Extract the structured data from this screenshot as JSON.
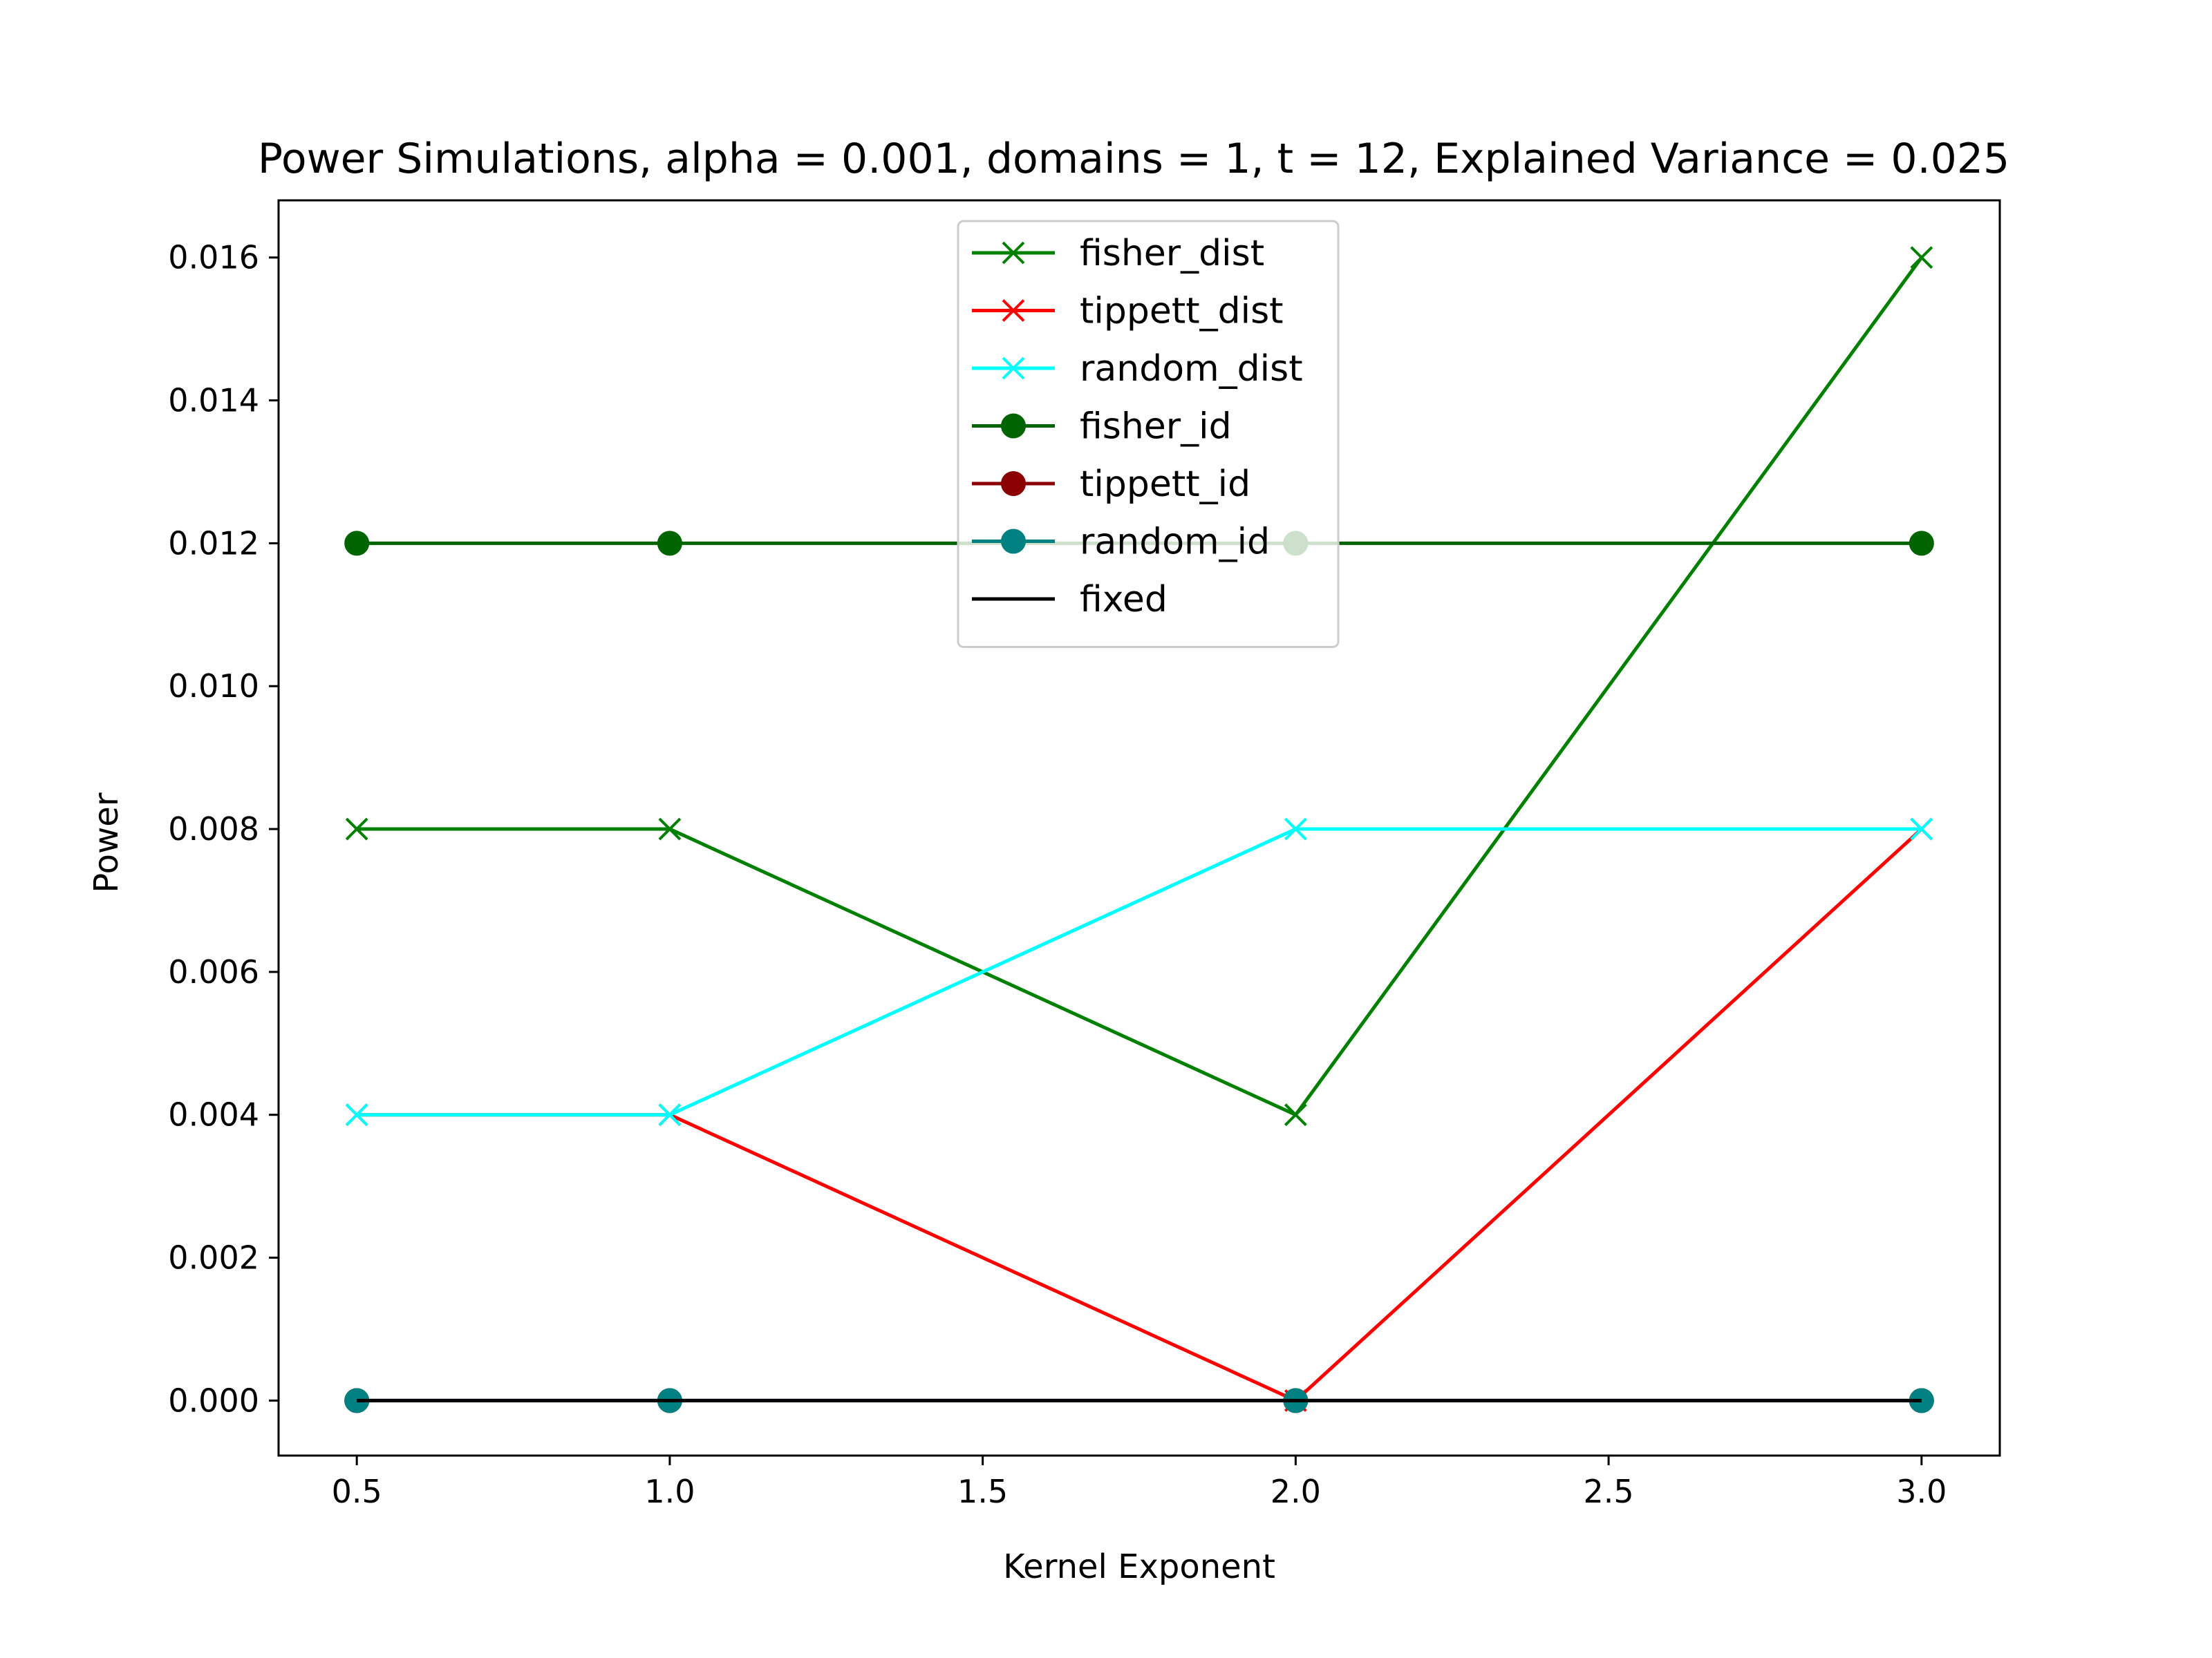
{
  "chart_data": {
    "type": "line",
    "title": "Power Simulations, alpha = 0.001, domains = 1, t = 12, Explained Variance = 0.025",
    "xlabel": "Kernel Exponent",
    "ylabel": "Power",
    "x": [
      0.5,
      1.0,
      2.0,
      3.0
    ],
    "xlim": [
      0.375,
      3.125
    ],
    "ylim": [
      -0.00077,
      0.0168
    ],
    "xticks": [
      0.5,
      1.0,
      1.5,
      2.0,
      2.5,
      3.0
    ],
    "xtick_labels": [
      "0.5",
      "1.0",
      "1.5",
      "2.0",
      "2.5",
      "3.0"
    ],
    "yticks": [
      0.0,
      0.002,
      0.004,
      0.006,
      0.008,
      0.01,
      0.012,
      0.014,
      0.016
    ],
    "ytick_labels": [
      "0.000",
      "0.002",
      "0.004",
      "0.006",
      "0.008",
      "0.010",
      "0.012",
      "0.014",
      "0.016"
    ],
    "grid": false,
    "legend_position": "upper center",
    "series": [
      {
        "name": "fisher_dist",
        "values": [
          0.008,
          0.008,
          0.004,
          0.016
        ],
        "color": "#008000",
        "marker": "x"
      },
      {
        "name": "tippett_dist",
        "values": [
          0.004,
          0.004,
          0.0,
          0.008
        ],
        "color": "#ff0000",
        "marker": "x"
      },
      {
        "name": "random_dist",
        "values": [
          0.004,
          0.004,
          0.008,
          0.008
        ],
        "color": "#00ffff",
        "marker": "x"
      },
      {
        "name": "fisher_id",
        "values": [
          0.012,
          0.012,
          0.012,
          0.012
        ],
        "color": "#006400",
        "marker": "o"
      },
      {
        "name": "tippett_id",
        "values": [
          0.0,
          0.0,
          0.0,
          0.0
        ],
        "color": "#8b0000",
        "marker": "o"
      },
      {
        "name": "random_id",
        "values": [
          0.0,
          0.0,
          0.0,
          0.0
        ],
        "color": "#008080",
        "marker": "o"
      },
      {
        "name": "fixed",
        "values": [
          0.0,
          0.0,
          0.0,
          0.0
        ],
        "color": "#000000",
        "marker": "none"
      }
    ]
  }
}
